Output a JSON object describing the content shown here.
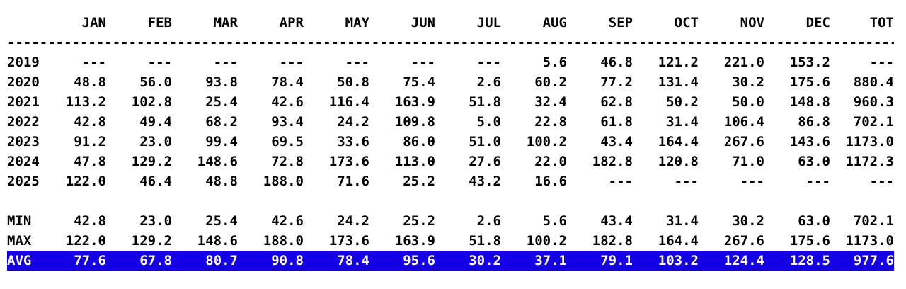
{
  "chart_data": {
    "type": "table",
    "columns": [
      "",
      "JAN",
      "FEB",
      "MAR",
      "APR",
      "MAY",
      "JUN",
      "JUL",
      "AUG",
      "SEP",
      "OCT",
      "NOV",
      "DEC",
      "TOT"
    ],
    "separator": "--------------------------------------------------------------------------------------------------------------",
    "rows": [
      {
        "label": "2019",
        "values": [
          "---",
          "---",
          "---",
          "---",
          "---",
          "---",
          "---",
          "5.6",
          "46.8",
          "121.2",
          "221.0",
          "153.2",
          "---"
        ]
      },
      {
        "label": "2020",
        "values": [
          "48.8",
          "56.0",
          "93.8",
          "78.4",
          "50.8",
          "75.4",
          "2.6",
          "60.2",
          "77.2",
          "131.4",
          "30.2",
          "175.6",
          "880.4"
        ]
      },
      {
        "label": "2021",
        "values": [
          "113.2",
          "102.8",
          "25.4",
          "42.6",
          "116.4",
          "163.9",
          "51.8",
          "32.4",
          "62.8",
          "50.2",
          "50.0",
          "148.8",
          "960.3"
        ]
      },
      {
        "label": "2022",
        "values": [
          "42.8",
          "49.4",
          "68.2",
          "93.4",
          "24.2",
          "109.8",
          "5.0",
          "22.8",
          "61.8",
          "31.4",
          "106.4",
          "86.8",
          "702.1"
        ]
      },
      {
        "label": "2023",
        "values": [
          "91.2",
          "23.0",
          "99.4",
          "69.5",
          "33.6",
          "86.0",
          "51.0",
          "100.2",
          "43.4",
          "164.4",
          "267.6",
          "143.6",
          "1173.0"
        ]
      },
      {
        "label": "2024",
        "values": [
          "47.8",
          "129.2",
          "148.6",
          "72.8",
          "173.6",
          "113.0",
          "27.6",
          "22.0",
          "182.8",
          "120.8",
          "71.0",
          "63.0",
          "1172.3"
        ]
      },
      {
        "label": "2025",
        "values": [
          "122.0",
          "46.4",
          "48.8",
          "188.0",
          "71.6",
          "25.2",
          "43.2",
          "16.6",
          "---",
          "---",
          "---",
          "---",
          "---"
        ]
      },
      {
        "spacer": true
      },
      {
        "label": "MIN",
        "values": [
          "42.8",
          "23.0",
          "25.4",
          "42.6",
          "24.2",
          "25.2",
          "2.6",
          "5.6",
          "43.4",
          "31.4",
          "30.2",
          "63.0",
          "702.1"
        ]
      },
      {
        "label": "MAX",
        "values": [
          "122.0",
          "129.2",
          "148.6",
          "188.0",
          "173.6",
          "163.9",
          "51.8",
          "100.2",
          "182.8",
          "164.4",
          "267.6",
          "175.6",
          "1173.0"
        ]
      },
      {
        "label": "AVG",
        "highlight": true,
        "values": [
          "77.6",
          "67.8",
          "80.7",
          "90.8",
          "78.4",
          "95.6",
          "30.2",
          "37.1",
          "79.1",
          "103.2",
          "124.4",
          "128.5",
          "977.6"
        ]
      }
    ],
    "colors": {
      "text": "#000000",
      "background": "#FFFFFF",
      "highlight_bg": "#1500E6",
      "highlight_text": "#FFFFFF"
    }
  }
}
